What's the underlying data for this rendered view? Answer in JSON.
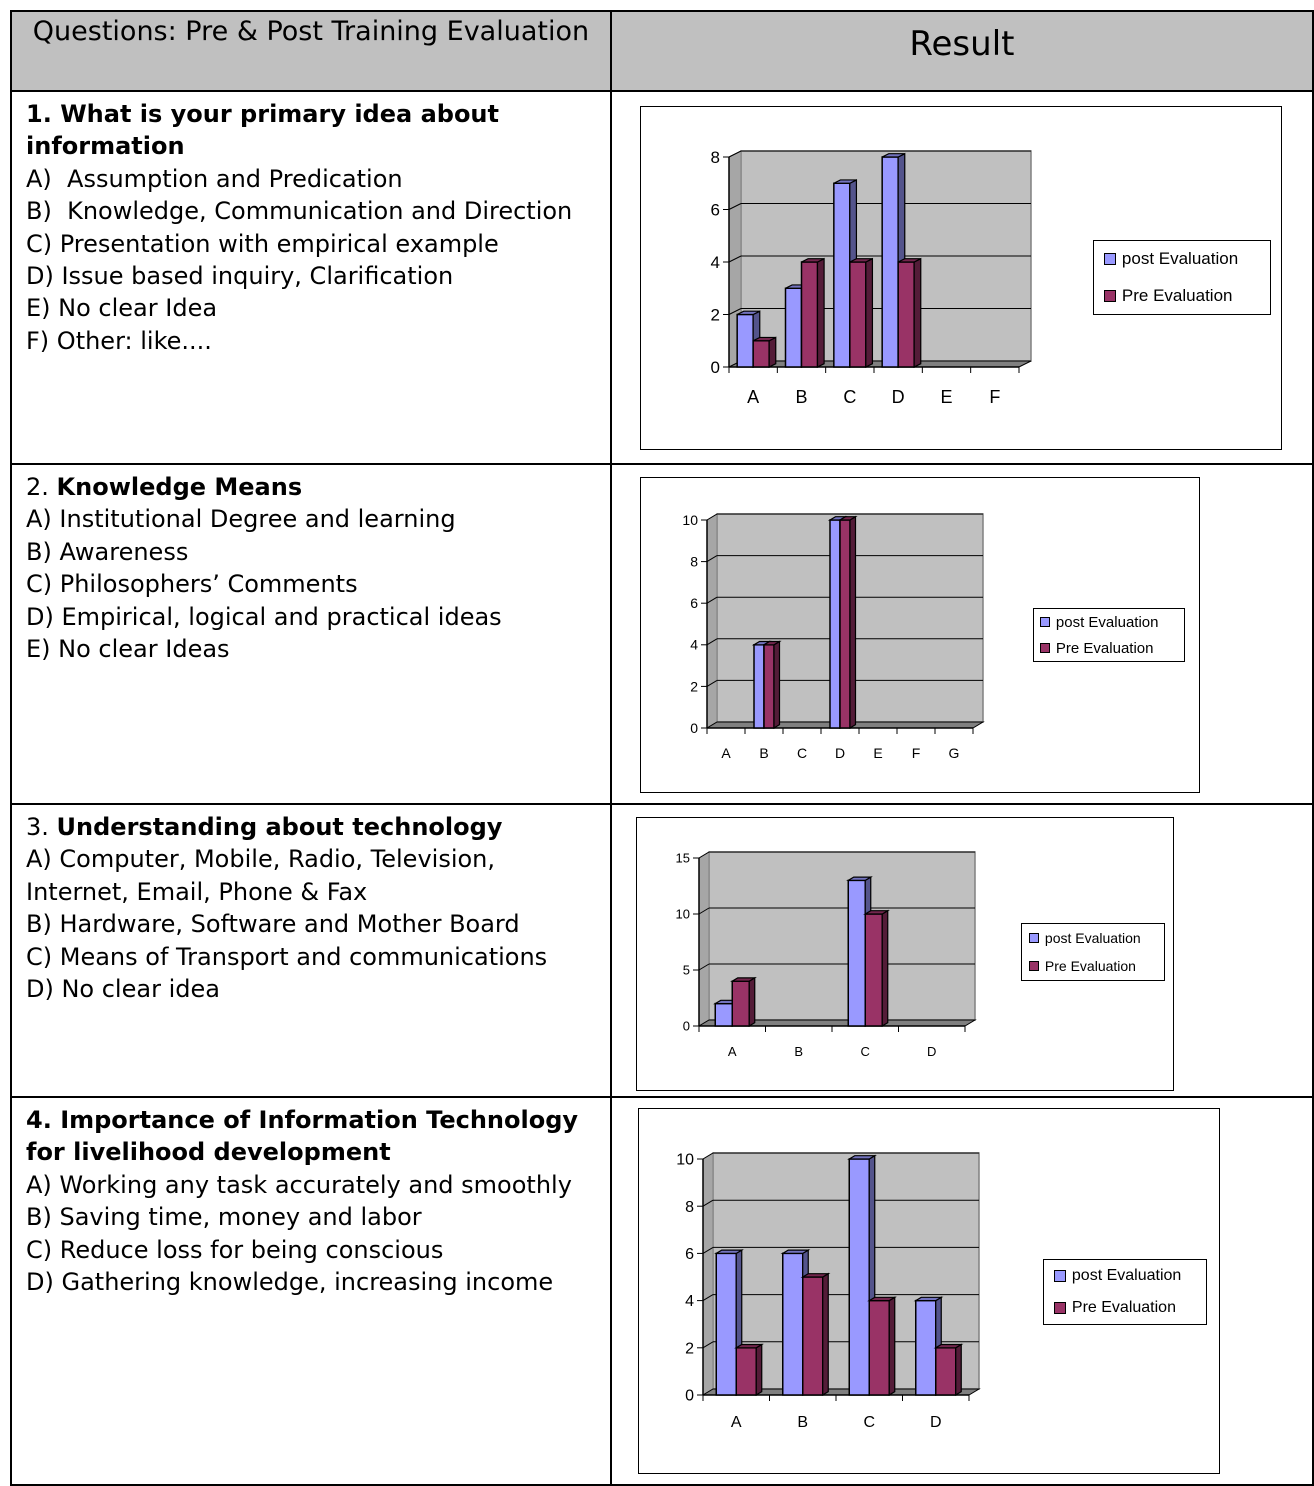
{
  "header": {
    "questions": "Questions: Pre & Post Training Evaluation",
    "result": "Result"
  },
  "colors": {
    "post": "#9999ff",
    "pre": "#993366",
    "plot_bg": "#c0c0c0",
    "floor": "#808080",
    "header_bg": "#c0c0c0"
  },
  "rows": [
    {
      "number": "1.",
      "title": "What is your primary idea about information",
      "options": [
        "A)  Assumption and Predication",
        "B)  Knowledge, Communication and Direction",
        "C) Presentation with empirical example",
        "D) Issue based inquiry, Clarification",
        "E) No clear Idea",
        "F) Other: like...."
      ],
      "chart_data": {
        "type": "bar",
        "categories": [
          "A",
          "B",
          "C",
          "D",
          "E",
          "F"
        ],
        "series": [
          {
            "name": "post Evaluation",
            "values": [
              2,
              3,
              7,
              8,
              0,
              0
            ]
          },
          {
            "name": "Pre Evaluation",
            "values": [
              1,
              4,
              4,
              4,
              0,
              0
            ]
          }
        ],
        "yticks": [
          "0",
          "2",
          "4",
          "6",
          "8"
        ],
        "ylim": [
          0,
          8
        ],
        "grid": true,
        "legend": "right",
        "style": "3d-clustered"
      }
    },
    {
      "number": "2.",
      "title": "Knowledge Means",
      "options": [
        "A) Institutional Degree and learning",
        "B) Awareness",
        "C) Philosophers’ Comments",
        "D) Empirical, logical and practical ideas",
        "E) No clear Ideas"
      ],
      "chart_data": {
        "type": "bar",
        "categories": [
          "A",
          "B",
          "C",
          "D",
          "E",
          "F",
          "G"
        ],
        "series": [
          {
            "name": "post Evaluation",
            "values": [
              0,
              4,
              0,
              10,
              0,
              0,
              0
            ]
          },
          {
            "name": "Pre Evaluation",
            "values": [
              0,
              4,
              0,
              10,
              0,
              0,
              0
            ]
          }
        ],
        "yticks": [
          "0",
          "2",
          "4",
          "6",
          "8",
          "10"
        ],
        "ylim": [
          0,
          10
        ],
        "grid": true,
        "legend": "right",
        "style": "3d-clustered"
      }
    },
    {
      "number": "3.",
      "title": "Understanding about technology",
      "options": [
        "A) Computer, Mobile, Radio, Television,",
        "Internet, Email, Phone & Fax",
        "B) Hardware, Software and Mother Board",
        "C) Means of Transport and communications",
        "D) No clear idea"
      ],
      "chart_data": {
        "type": "bar",
        "categories": [
          "A",
          "B",
          "C",
          "D"
        ],
        "series": [
          {
            "name": "post Evaluation",
            "values": [
              2,
              0,
              13,
              0
            ]
          },
          {
            "name": "Pre Evaluation",
            "values": [
              4,
              0,
              10,
              0
            ]
          }
        ],
        "yticks": [
          "0",
          "5",
          "10",
          "15"
        ],
        "ylim": [
          0,
          15
        ],
        "grid": true,
        "legend": "right",
        "style": "3d-clustered"
      }
    },
    {
      "number": "4.",
      "title": "Importance of Information Technology for livelihood development",
      "options": [
        "A) Working any task accurately and smoothly",
        "B) Saving time, money and labor",
        "C) Reduce loss for being conscious",
        "D) Gathering knowledge, increasing income"
      ],
      "chart_data": {
        "type": "bar",
        "categories": [
          "A",
          "B",
          "C",
          "D"
        ],
        "series": [
          {
            "name": "post Evaluation",
            "values": [
              6,
              6,
              10,
              4
            ]
          },
          {
            "name": "Pre Evaluation",
            "values": [
              2,
              5,
              4,
              2
            ]
          }
        ],
        "yticks": [
          "0",
          "2",
          "4",
          "6",
          "8",
          "10"
        ],
        "ylim": [
          0,
          10
        ],
        "grid": true,
        "legend": "right",
        "style": "3d-clustered"
      }
    }
  ]
}
